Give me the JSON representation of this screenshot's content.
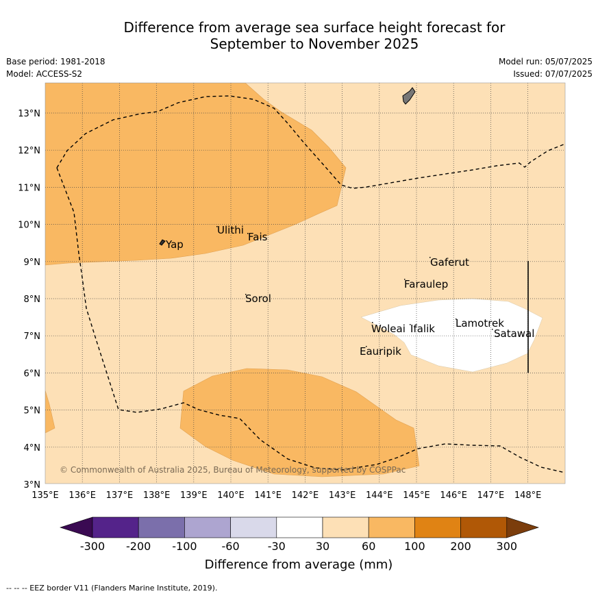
{
  "title_line1": "Difference from average sea surface height forecast for",
  "title_line2": "September to November 2025",
  "meta": {
    "base_period": "Base period: 1981-2018",
    "model": "Model: ACCESS-S2",
    "model_run": "Model run: 05/07/2025",
    "issued": "Issued: 07/07/2025"
  },
  "map": {
    "lon_labels": [
      "135°E",
      "136°E",
      "137°E",
      "138°E",
      "139°E",
      "140°E",
      "141°E",
      "142°E",
      "143°E",
      "144°E",
      "145°E",
      "146°E",
      "147°E",
      "148°E"
    ],
    "lat_labels": [
      "13°N",
      "12°N",
      "11°N",
      "10°N",
      "9°N",
      "8°N",
      "7°N",
      "6°N",
      "5°N",
      "4°N",
      "3°N"
    ],
    "places": [
      "Yap",
      "Ulithi",
      "Fais",
      "Gaferut",
      "Faraulep",
      "Sorol",
      "Woleai",
      "Ifalik",
      "Lamotrek",
      "Satawal",
      "Eauripik"
    ],
    "copyright": "© Commonwealth of Australia 2025, Bureau of Meteorology, supported by COSPPac",
    "colors": {
      "band_30_60": "#fde0b6",
      "band_60_100": "#f9b862",
      "neutral": "#ffffff",
      "eez_border": "#000000"
    }
  },
  "colorbar": {
    "ticks": [
      "-300",
      "-200",
      "-100",
      "-60",
      "-30",
      "30",
      "60",
      "100",
      "200",
      "300"
    ],
    "colors": [
      "#3a0a52",
      "#54238a",
      "#7b6fab",
      "#ada5d0",
      "#d9d9ea",
      "#ffffff",
      "#fde0b6",
      "#f9b862",
      "#e08314",
      "#b05806",
      "#7b3d0c"
    ],
    "label": "Difference from average (mm)"
  },
  "footer": "--  --  -- EEZ border V11 (Flanders Marine Institute, 2019)."
}
